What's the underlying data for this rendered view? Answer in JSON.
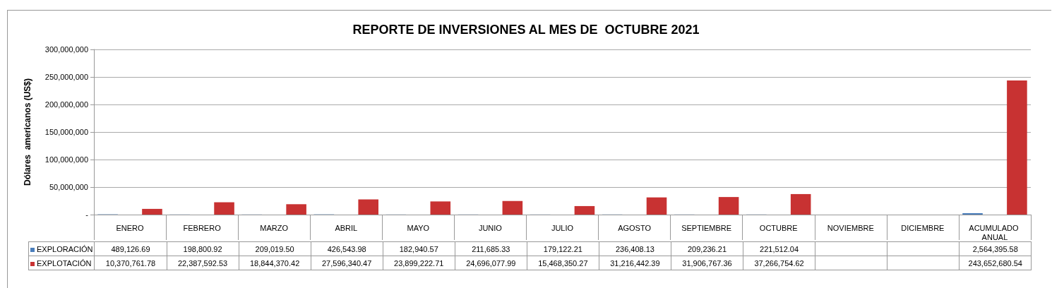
{
  "chart_data": {
    "type": "bar",
    "title": "REPORTE DE INVERSIONES AL MES DE  OCTUBRE 2021",
    "ylabel": "Dólares  americanos (US$)",
    "categories": [
      "ENERO",
      "FEBRERO",
      "MARZO",
      "ABRIL",
      "MAYO",
      "JUNIO",
      "JULIO",
      "AGOSTO",
      "SEPTIEMBRE",
      "OCTUBRE",
      "NOVIEMBRE",
      "DICIEMBRE",
      "ACUMULADO ANUAL"
    ],
    "series": [
      {
        "name": "EXPLORACIÓN",
        "color": "#4a7ebb",
        "values": [
          489126.69,
          198800.92,
          209019.5,
          426543.98,
          182940.57,
          211685.33,
          179122.21,
          236408.13,
          209236.21,
          221512.04,
          null,
          null,
          2564395.58
        ],
        "value_labels": [
          "489,126.69",
          "198,800.92",
          "209,019.50",
          "426,543.98",
          "182,940.57",
          "211,685.33",
          "179,122.21",
          "236,408.13",
          "209,236.21",
          "221,512.04",
          null,
          null,
          "2,564,395.58"
        ]
      },
      {
        "name": "EXPLOTACIÓN",
        "color": "#c83232",
        "values": [
          10370761.78,
          22387592.53,
          18844370.42,
          27596340.47,
          23899222.71,
          24696077.99,
          15468350.27,
          31216442.39,
          31906767.36,
          37266754.62,
          null,
          null,
          243652680.54
        ],
        "value_labels": [
          "10,370,761.78",
          "22,387,592.53",
          "18,844,370.42",
          "27,596,340.47",
          "23,899,222.71",
          "24,696,077.99",
          "15,468,350.27",
          "31,216,442.39",
          "31,906,767.36",
          "37,266,754.62",
          null,
          null,
          "243,652,680.54"
        ]
      }
    ],
    "ylim": [
      0,
      300000000
    ],
    "yticks": [
      {
        "value": 0,
        "label": "-"
      },
      {
        "value": 50000000,
        "label": "50,000,000"
      },
      {
        "value": 100000000,
        "label": "100,000,000"
      },
      {
        "value": 150000000,
        "label": "150,000,000"
      },
      {
        "value": 200000000,
        "label": "200,000,000"
      },
      {
        "value": 250000000,
        "label": "250,000,000"
      },
      {
        "value": 300000000,
        "label": "300,000,000"
      }
    ],
    "grid": "y",
    "legend": "bottom"
  }
}
